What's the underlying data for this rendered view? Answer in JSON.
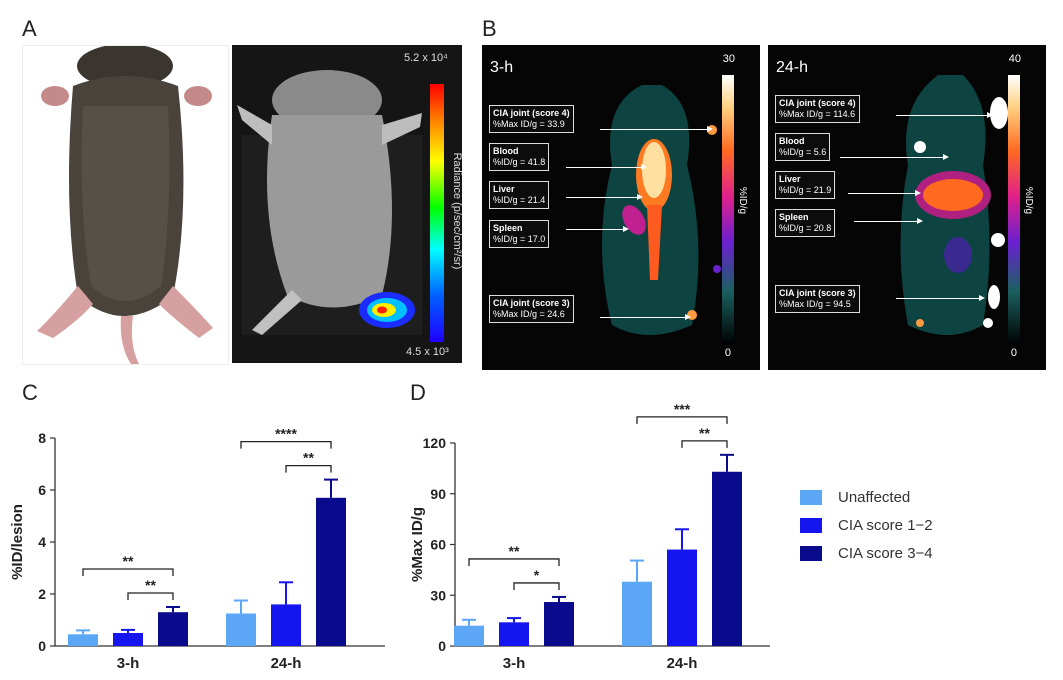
{
  "panels": {
    "a": "A",
    "b": "B",
    "c": "C",
    "d": "D"
  },
  "bli": {
    "max": "5.2 x 10⁴",
    "min": "4.5 x 10³",
    "axis": "Radiance (p/sec/cm²/sr)"
  },
  "pet": [
    {
      "time": "3-h",
      "max": "30",
      "min": "0",
      "axis": "%ID/g",
      "labels": [
        {
          "title": "CIA joint (score 4)",
          "value": "%Max ID/g = 33.9"
        },
        {
          "title": "Blood",
          "value": "%ID/g = 41.8"
        },
        {
          "title": "Liver",
          "value": "%ID/g = 21.4"
        },
        {
          "title": "Spleen",
          "value": "%ID/g = 17.0"
        },
        {
          "title": "CIA joint (score 3)",
          "value": "%Max ID/g = 24.6"
        }
      ]
    },
    {
      "time": "24-h",
      "max": "40",
      "min": "0",
      "axis": "%ID/g",
      "labels": [
        {
          "title": "CIA joint (score 4)",
          "value": "%Max ID/g = 114.6"
        },
        {
          "title": "Blood",
          "value": "%ID/g = 5.6"
        },
        {
          "title": "Liver",
          "value": "%ID/g = 21.9"
        },
        {
          "title": "Spleen",
          "value": "%ID/g = 20.8"
        },
        {
          "title": "CIA joint (score 3)",
          "value": "%Max ID/g = 94.5"
        }
      ]
    }
  ],
  "colors": {
    "unaffected": "#5ba7f5",
    "score12": "#1515f0",
    "score34": "#0a0a8c"
  },
  "legend": [
    "Unaffected",
    "CIA score 1−2",
    "CIA score 3−4"
  ],
  "chart_data": [
    {
      "type": "bar",
      "categories": [
        "3-h",
        "24-h"
      ],
      "ylabel": "%ID/lesion",
      "ylim": [
        0,
        8
      ],
      "yticks": [
        "0",
        "2",
        "4",
        "6",
        "8"
      ],
      "series": [
        {
          "name": "Unaffected",
          "values": [
            0.45,
            1.25
          ],
          "errors": [
            0.15,
            0.5
          ]
        },
        {
          "name": "CIA score 1−2",
          "values": [
            0.5,
            1.6
          ],
          "errors": [
            0.12,
            0.85
          ]
        },
        {
          "name": "CIA score 3−4",
          "values": [
            1.3,
            5.7
          ],
          "errors": [
            0.2,
            0.7
          ]
        }
      ],
      "significance": [
        {
          "group": 0,
          "from": 0,
          "to": 2,
          "label": "**"
        },
        {
          "group": 0,
          "from": 1,
          "to": 2,
          "label": "**"
        },
        {
          "group": 1,
          "from": 0,
          "to": 2,
          "label": "****"
        },
        {
          "group": 1,
          "from": 1,
          "to": 2,
          "label": "**"
        }
      ]
    },
    {
      "type": "bar",
      "categories": [
        "3-h",
        "24-h"
      ],
      "ylabel": "%Max ID/g",
      "ylim": [
        0,
        120
      ],
      "yticks": [
        "0",
        "30",
        "60",
        "90",
        "120"
      ],
      "series": [
        {
          "name": "Unaffected",
          "values": [
            12,
            38
          ],
          "errors": [
            3.5,
            12.5
          ]
        },
        {
          "name": "CIA score 1−2",
          "values": [
            14,
            57
          ],
          "errors": [
            2.5,
            12
          ]
        },
        {
          "name": "CIA score 3−4",
          "values": [
            26,
            103
          ],
          "errors": [
            3,
            10
          ]
        }
      ],
      "significance": [
        {
          "group": 0,
          "from": 0,
          "to": 2,
          "label": "**"
        },
        {
          "group": 0,
          "from": 1,
          "to": 2,
          "label": "*"
        },
        {
          "group": 1,
          "from": 0,
          "to": 2,
          "label": "***"
        },
        {
          "group": 1,
          "from": 1,
          "to": 2,
          "label": "**"
        }
      ]
    }
  ]
}
